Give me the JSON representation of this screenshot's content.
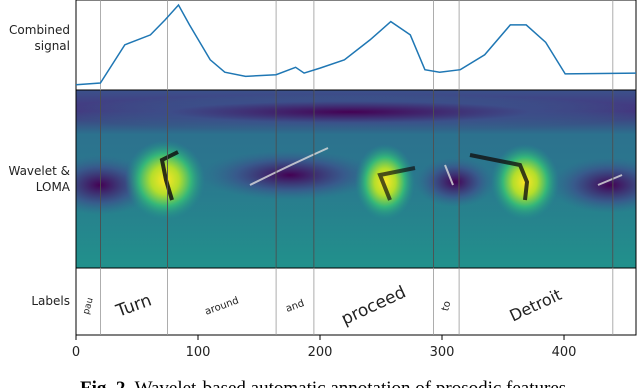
{
  "figure": {
    "panel_labels": {
      "signal": [
        "Combined",
        "signal"
      ],
      "wavelet": [
        "Wavelet &",
        "LOMA"
      ],
      "labels": [
        "Labels"
      ]
    },
    "xlim": [
      0,
      459
    ],
    "xticks": [
      0,
      100,
      200,
      300,
      400
    ],
    "boundaries": [
      20,
      75,
      164,
      195,
      293,
      314,
      440
    ],
    "words": [
      "pau",
      "Turn",
      "around",
      "and",
      "proceed",
      "to",
      "Detroit"
    ],
    "signal": {
      "x": [
        0,
        20,
        40,
        61,
        73,
        84,
        93,
        110,
        122,
        139,
        164,
        180,
        187,
        200,
        220,
        241,
        258,
        274,
        286,
        298,
        315,
        335,
        356,
        369,
        385,
        401,
        459
      ],
      "y": [
        0.04,
        0.06,
        0.52,
        0.64,
        0.82,
        1.0,
        0.76,
        0.34,
        0.19,
        0.14,
        0.16,
        0.25,
        0.18,
        0.24,
        0.34,
        0.58,
        0.8,
        0.64,
        0.22,
        0.19,
        0.22,
        0.4,
        0.76,
        0.76,
        0.55,
        0.17,
        0.18
      ],
      "ylim": [
        0,
        1
      ]
    },
    "caption": {
      "label": "Fig. 2.",
      "text": "Wavelet-based automatic annotation of prosodic features"
    }
  }
}
